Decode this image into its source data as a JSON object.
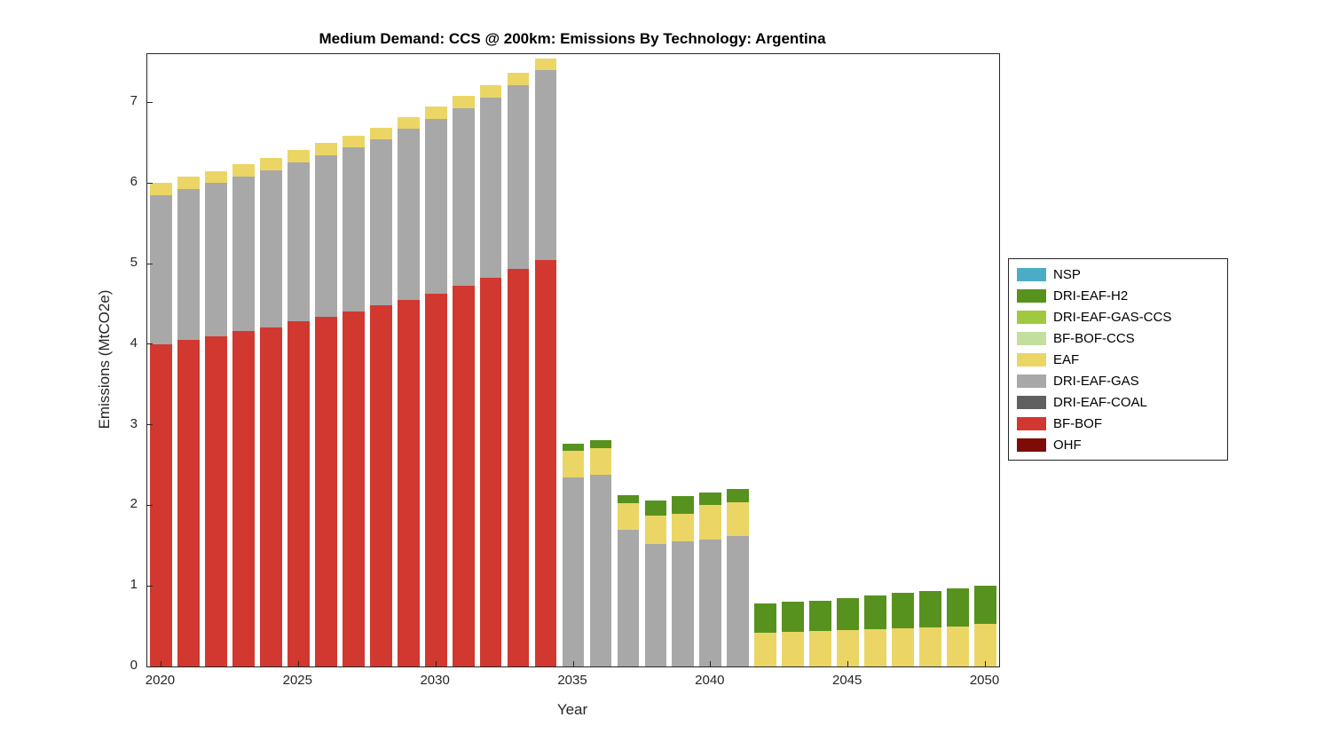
{
  "chart_data": {
    "type": "bar",
    "stacked": true,
    "title": "Medium Demand: CCS @ 200km: Emissions By Technology: Argentina",
    "xlabel": "Year",
    "ylabel": "Emissions (MtCO2e)",
    "ylim": [
      0,
      7.6
    ],
    "yticks": [
      0,
      1,
      2,
      3,
      4,
      5,
      6,
      7
    ],
    "xticks": [
      2020,
      2025,
      2030,
      2035,
      2040,
      2045,
      2050
    ],
    "grid": false,
    "categories": [
      2020,
      2021,
      2022,
      2023,
      2024,
      2025,
      2026,
      2027,
      2028,
      2029,
      2030,
      2031,
      2032,
      2033,
      2034,
      2035,
      2036,
      2037,
      2038,
      2039,
      2040,
      2041,
      2042,
      2043,
      2044,
      2045,
      2046,
      2047,
      2048,
      2049,
      2050
    ],
    "series": [
      {
        "name": "OHF",
        "color": "#7E0B05",
        "values": [
          0,
          0,
          0,
          0,
          0,
          0,
          0,
          0,
          0,
          0,
          0,
          0,
          0,
          0,
          0,
          0,
          0,
          0,
          0,
          0,
          0,
          0,
          0,
          0,
          0,
          0,
          0,
          0,
          0,
          0,
          0
        ]
      },
      {
        "name": "BF-BOF",
        "color": "#D13830",
        "values": [
          4.0,
          4.05,
          4.1,
          4.16,
          4.21,
          4.28,
          4.34,
          4.41,
          4.48,
          4.55,
          4.63,
          4.73,
          4.83,
          4.93,
          5.05,
          0,
          0,
          0,
          0,
          0,
          0,
          0,
          0,
          0,
          0,
          0,
          0,
          0,
          0,
          0,
          0
        ]
      },
      {
        "name": "DRI-EAF-COAL",
        "color": "#606060",
        "values": [
          0,
          0,
          0,
          0,
          0,
          0,
          0,
          0,
          0,
          0,
          0,
          0,
          0,
          0,
          0,
          0,
          0,
          0,
          0,
          0,
          0,
          0,
          0,
          0,
          0,
          0,
          0,
          0,
          0,
          0,
          0
        ]
      },
      {
        "name": "DRI-EAF-GAS",
        "color": "#A8A8A8",
        "values": [
          1.85,
          1.88,
          1.9,
          1.92,
          1.95,
          1.98,
          2.01,
          2.03,
          2.06,
          2.12,
          2.17,
          2.2,
          2.23,
          2.29,
          2.35,
          2.35,
          2.38,
          1.7,
          1.52,
          1.55,
          1.58,
          1.62,
          0,
          0,
          0,
          0,
          0,
          0,
          0,
          0,
          0
        ]
      },
      {
        "name": "EAF",
        "color": "#EBD665",
        "values": [
          0.15,
          0.15,
          0.15,
          0.15,
          0.15,
          0.15,
          0.15,
          0.15,
          0.15,
          0.15,
          0.15,
          0.15,
          0.15,
          0.15,
          0.15,
          0.33,
          0.33,
          0.33,
          0.35,
          0.35,
          0.42,
          0.42,
          0.42,
          0.43,
          0.44,
          0.45,
          0.46,
          0.47,
          0.48,
          0.5,
          0.53
        ]
      },
      {
        "name": "BF-BOF-CCS",
        "color": "#C2DF9E",
        "values": [
          0,
          0,
          0,
          0,
          0,
          0,
          0,
          0,
          0,
          0,
          0,
          0,
          0,
          0,
          0,
          0,
          0,
          0,
          0,
          0,
          0,
          0,
          0,
          0,
          0,
          0,
          0,
          0,
          0,
          0,
          0
        ]
      },
      {
        "name": "DRI-EAF-GAS-CCS",
        "color": "#A0C940",
        "values": [
          0,
          0,
          0,
          0,
          0,
          0,
          0,
          0,
          0,
          0,
          0,
          0,
          0,
          0,
          0,
          0,
          0,
          0,
          0,
          0,
          0,
          0,
          0,
          0,
          0,
          0,
          0,
          0,
          0,
          0,
          0
        ]
      },
      {
        "name": "DRI-EAF-H2",
        "color": "#57921E",
        "values": [
          0,
          0,
          0,
          0,
          0,
          0,
          0,
          0,
          0,
          0,
          0,
          0,
          0,
          0,
          0,
          0.08,
          0.1,
          0.1,
          0.19,
          0.21,
          0.16,
          0.16,
          0.36,
          0.37,
          0.38,
          0.4,
          0.42,
          0.44,
          0.46,
          0.47,
          0.47
        ]
      },
      {
        "name": "NSP",
        "color": "#4BACC6",
        "values": [
          0,
          0,
          0,
          0,
          0,
          0,
          0,
          0,
          0,
          0,
          0,
          0,
          0,
          0,
          0,
          0,
          0,
          0,
          0,
          0,
          0,
          0,
          0,
          0,
          0,
          0,
          0,
          0,
          0,
          0,
          0
        ]
      }
    ],
    "legend": {
      "position": "right",
      "entries_top_to_bottom": [
        "NSP",
        "DRI-EAF-H2",
        "DRI-EAF-GAS-CCS",
        "BF-BOF-CCS",
        "EAF",
        "DRI-EAF-GAS",
        "DRI-EAF-COAL",
        "BF-BOF",
        "OHF"
      ]
    }
  }
}
